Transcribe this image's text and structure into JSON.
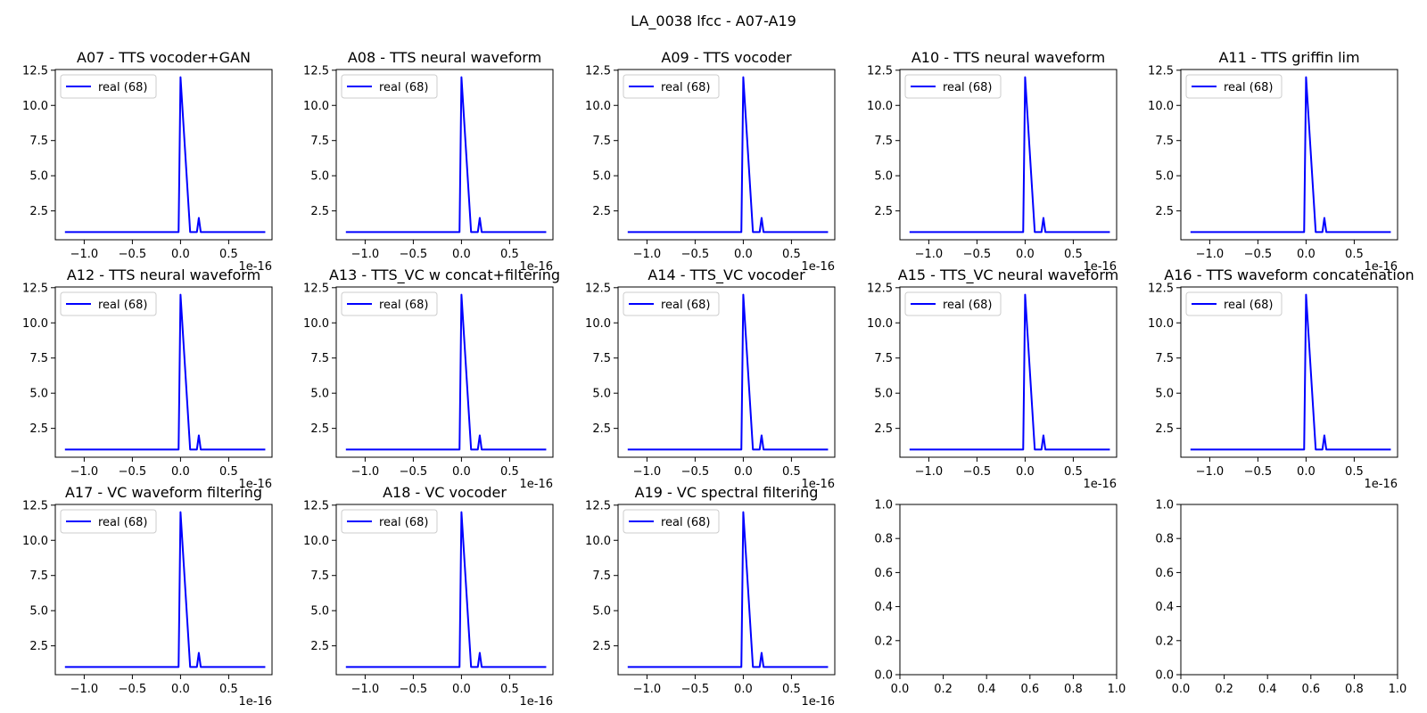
{
  "figure": {
    "title": "LA_0038 lfcc - A07-A19"
  },
  "chart_data": [
    {
      "type": "line",
      "title": "A07 - TTS vocoder+GAN",
      "x": [
        -1.2,
        -0.1,
        0.0,
        0.1,
        0.2,
        0.9
      ],
      "xlim": [
        -1.3,
        0.95
      ],
      "ylim": [
        0.45,
        12.55
      ],
      "x_offset_label": "1e-16",
      "x_ticks": [
        -1.0,
        -0.5,
        0.0,
        0.5
      ],
      "x_tick_labels": [
        "−1.0",
        "−0.5",
        "0.0",
        "0.5"
      ],
      "y_ticks": [
        2.5,
        5.0,
        7.5,
        10.0,
        12.5
      ],
      "y_tick_labels": [
        "2.5",
        "5.0",
        "7.5",
        "10.0",
        "12.5"
      ],
      "series": [
        {
          "name": "real (68)",
          "color": "#0000ff",
          "points": [
            [
              -1.2,
              1
            ],
            [
              -0.02,
              1
            ],
            [
              0,
              12
            ],
            [
              0.1,
              1
            ],
            [
              0.17,
              1
            ],
            [
              0.19,
              2
            ],
            [
              0.21,
              1
            ],
            [
              0.88,
              1
            ]
          ]
        }
      ],
      "legend": "upper-left"
    },
    {
      "type": "line",
      "title": "A08 - TTS neural waveform",
      "xlim": [
        -1.3,
        0.95
      ],
      "ylim": [
        0.45,
        12.55
      ],
      "x_offset_label": "1e-16",
      "x_ticks": [
        -1.0,
        -0.5,
        0.0,
        0.5
      ],
      "x_tick_labels": [
        "−1.0",
        "−0.5",
        "0.0",
        "0.5"
      ],
      "y_ticks": [
        2.5,
        5.0,
        7.5,
        10.0,
        12.5
      ],
      "y_tick_labels": [
        "2.5",
        "5.0",
        "7.5",
        "10.0",
        "12.5"
      ],
      "series": [
        {
          "name": "real (68)",
          "color": "#0000ff",
          "points": [
            [
              -1.2,
              1
            ],
            [
              -0.02,
              1
            ],
            [
              0,
              12
            ],
            [
              0.1,
              1
            ],
            [
              0.17,
              1
            ],
            [
              0.19,
              2
            ],
            [
              0.21,
              1
            ],
            [
              0.88,
              1
            ]
          ]
        }
      ],
      "legend": "upper-left"
    },
    {
      "type": "line",
      "title": "A09 - TTS vocoder",
      "xlim": [
        -1.3,
        0.95
      ],
      "ylim": [
        0.45,
        12.55
      ],
      "x_offset_label": "1e-16",
      "x_ticks": [
        -1.0,
        -0.5,
        0.0,
        0.5
      ],
      "x_tick_labels": [
        "−1.0",
        "−0.5",
        "0.0",
        "0.5"
      ],
      "y_ticks": [
        2.5,
        5.0,
        7.5,
        10.0,
        12.5
      ],
      "y_tick_labels": [
        "2.5",
        "5.0",
        "7.5",
        "10.0",
        "12.5"
      ],
      "series": [
        {
          "name": "real (68)",
          "color": "#0000ff",
          "points": [
            [
              -1.2,
              1
            ],
            [
              -0.02,
              1
            ],
            [
              0,
              12
            ],
            [
              0.1,
              1
            ],
            [
              0.17,
              1
            ],
            [
              0.19,
              2
            ],
            [
              0.21,
              1
            ],
            [
              0.88,
              1
            ]
          ]
        }
      ],
      "legend": "upper-left"
    },
    {
      "type": "line",
      "title": "A10 - TTS neural waveform",
      "xlim": [
        -1.3,
        0.95
      ],
      "ylim": [
        0.45,
        12.55
      ],
      "x_offset_label": "1e-16",
      "x_ticks": [
        -1.0,
        -0.5,
        0.0,
        0.5
      ],
      "x_tick_labels": [
        "−1.0",
        "−0.5",
        "0.0",
        "0.5"
      ],
      "y_ticks": [
        2.5,
        5.0,
        7.5,
        10.0,
        12.5
      ],
      "y_tick_labels": [
        "2.5",
        "5.0",
        "7.5",
        "10.0",
        "12.5"
      ],
      "series": [
        {
          "name": "real (68)",
          "color": "#0000ff",
          "points": [
            [
              -1.2,
              1
            ],
            [
              -0.02,
              1
            ],
            [
              0,
              12
            ],
            [
              0.1,
              1
            ],
            [
              0.17,
              1
            ],
            [
              0.19,
              2
            ],
            [
              0.21,
              1
            ],
            [
              0.88,
              1
            ]
          ]
        }
      ],
      "legend": "upper-left"
    },
    {
      "type": "line",
      "title": "A11 - TTS griffin lim",
      "xlim": [
        -1.3,
        0.95
      ],
      "ylim": [
        0.45,
        12.55
      ],
      "x_offset_label": "1e-16",
      "x_ticks": [
        -1.0,
        -0.5,
        0.0,
        0.5
      ],
      "x_tick_labels": [
        "−1.0",
        "−0.5",
        "0.0",
        "0.5"
      ],
      "y_ticks": [
        2.5,
        5.0,
        7.5,
        10.0,
        12.5
      ],
      "y_tick_labels": [
        "2.5",
        "5.0",
        "7.5",
        "10.0",
        "12.5"
      ],
      "series": [
        {
          "name": "real (68)",
          "color": "#0000ff",
          "points": [
            [
              -1.2,
              1
            ],
            [
              -0.02,
              1
            ],
            [
              0,
              12
            ],
            [
              0.1,
              1
            ],
            [
              0.17,
              1
            ],
            [
              0.19,
              2
            ],
            [
              0.21,
              1
            ],
            [
              0.88,
              1
            ]
          ]
        }
      ],
      "legend": "upper-left"
    },
    {
      "type": "line",
      "title": "A12 - TTS neural waveform",
      "xlim": [
        -1.3,
        0.95
      ],
      "ylim": [
        0.45,
        12.55
      ],
      "x_offset_label": "1e-16",
      "x_ticks": [
        -1.0,
        -0.5,
        0.0,
        0.5
      ],
      "x_tick_labels": [
        "−1.0",
        "−0.5",
        "0.0",
        "0.5"
      ],
      "y_ticks": [
        2.5,
        5.0,
        7.5,
        10.0,
        12.5
      ],
      "y_tick_labels": [
        "2.5",
        "5.0",
        "7.5",
        "10.0",
        "12.5"
      ],
      "series": [
        {
          "name": "real (68)",
          "color": "#0000ff",
          "points": [
            [
              -1.2,
              1
            ],
            [
              -0.02,
              1
            ],
            [
              0,
              12
            ],
            [
              0.1,
              1
            ],
            [
              0.17,
              1
            ],
            [
              0.19,
              2
            ],
            [
              0.21,
              1
            ],
            [
              0.88,
              1
            ]
          ]
        }
      ],
      "legend": "upper-left"
    },
    {
      "type": "line",
      "title": "A13 - TTS_VC w concat+filtering",
      "xlim": [
        -1.3,
        0.95
      ],
      "ylim": [
        0.45,
        12.55
      ],
      "x_offset_label": "1e-16",
      "x_ticks": [
        -1.0,
        -0.5,
        0.0,
        0.5
      ],
      "x_tick_labels": [
        "−1.0",
        "−0.5",
        "0.0",
        "0.5"
      ],
      "y_ticks": [
        2.5,
        5.0,
        7.5,
        10.0,
        12.5
      ],
      "y_tick_labels": [
        "2.5",
        "5.0",
        "7.5",
        "10.0",
        "12.5"
      ],
      "series": [
        {
          "name": "real (68)",
          "color": "#0000ff",
          "points": [
            [
              -1.2,
              1
            ],
            [
              -0.02,
              1
            ],
            [
              0,
              12
            ],
            [
              0.1,
              1
            ],
            [
              0.17,
              1
            ],
            [
              0.19,
              2
            ],
            [
              0.21,
              1
            ],
            [
              0.88,
              1
            ]
          ]
        }
      ],
      "legend": "upper-left"
    },
    {
      "type": "line",
      "title": "A14 - TTS_VC vocoder",
      "xlim": [
        -1.3,
        0.95
      ],
      "ylim": [
        0.45,
        12.55
      ],
      "x_offset_label": "1e-16",
      "x_ticks": [
        -1.0,
        -0.5,
        0.0,
        0.5
      ],
      "x_tick_labels": [
        "−1.0",
        "−0.5",
        "0.0",
        "0.5"
      ],
      "y_ticks": [
        2.5,
        5.0,
        7.5,
        10.0,
        12.5
      ],
      "y_tick_labels": [
        "2.5",
        "5.0",
        "7.5",
        "10.0",
        "12.5"
      ],
      "series": [
        {
          "name": "real (68)",
          "color": "#0000ff",
          "points": [
            [
              -1.2,
              1
            ],
            [
              -0.02,
              1
            ],
            [
              0,
              12
            ],
            [
              0.1,
              1
            ],
            [
              0.17,
              1
            ],
            [
              0.19,
              2
            ],
            [
              0.21,
              1
            ],
            [
              0.88,
              1
            ]
          ]
        }
      ],
      "legend": "upper-left"
    },
    {
      "type": "line",
      "title": "A15 - TTS_VC neural waveform",
      "xlim": [
        -1.3,
        0.95
      ],
      "ylim": [
        0.45,
        12.55
      ],
      "x_offset_label": "1e-16",
      "x_ticks": [
        -1.0,
        -0.5,
        0.0,
        0.5
      ],
      "x_tick_labels": [
        "−1.0",
        "−0.5",
        "0.0",
        "0.5"
      ],
      "y_ticks": [
        2.5,
        5.0,
        7.5,
        10.0,
        12.5
      ],
      "y_tick_labels": [
        "2.5",
        "5.0",
        "7.5",
        "10.0",
        "12.5"
      ],
      "series": [
        {
          "name": "real (68)",
          "color": "#0000ff",
          "points": [
            [
              -1.2,
              1
            ],
            [
              -0.02,
              1
            ],
            [
              0,
              12
            ],
            [
              0.1,
              1
            ],
            [
              0.17,
              1
            ],
            [
              0.19,
              2
            ],
            [
              0.21,
              1
            ],
            [
              0.88,
              1
            ]
          ]
        }
      ],
      "legend": "upper-left"
    },
    {
      "type": "line",
      "title": "A16 - TTS waveform concatenation",
      "xlim": [
        -1.3,
        0.95
      ],
      "ylim": [
        0.45,
        12.55
      ],
      "x_offset_label": "1e-16",
      "x_ticks": [
        -1.0,
        -0.5,
        0.0,
        0.5
      ],
      "x_tick_labels": [
        "−1.0",
        "−0.5",
        "0.0",
        "0.5"
      ],
      "y_ticks": [
        2.5,
        5.0,
        7.5,
        10.0,
        12.5
      ],
      "y_tick_labels": [
        "2.5",
        "5.0",
        "7.5",
        "10.0",
        "12.5"
      ],
      "series": [
        {
          "name": "real (68)",
          "color": "#0000ff",
          "points": [
            [
              -1.2,
              1
            ],
            [
              -0.02,
              1
            ],
            [
              0,
              12
            ],
            [
              0.1,
              1
            ],
            [
              0.17,
              1
            ],
            [
              0.19,
              2
            ],
            [
              0.21,
              1
            ],
            [
              0.88,
              1
            ]
          ]
        }
      ],
      "legend": "upper-left"
    },
    {
      "type": "line",
      "title": "A17 - VC waveform filtering",
      "xlim": [
        -1.3,
        0.95
      ],
      "ylim": [
        0.45,
        12.55
      ],
      "x_offset_label": "1e-16",
      "x_ticks": [
        -1.0,
        -0.5,
        0.0,
        0.5
      ],
      "x_tick_labels": [
        "−1.0",
        "−0.5",
        "0.0",
        "0.5"
      ],
      "y_ticks": [
        2.5,
        5.0,
        7.5,
        10.0,
        12.5
      ],
      "y_tick_labels": [
        "2.5",
        "5.0",
        "7.5",
        "10.0",
        "12.5"
      ],
      "series": [
        {
          "name": "real (68)",
          "color": "#0000ff",
          "points": [
            [
              -1.2,
              1
            ],
            [
              -0.02,
              1
            ],
            [
              0,
              12
            ],
            [
              0.1,
              1
            ],
            [
              0.17,
              1
            ],
            [
              0.19,
              2
            ],
            [
              0.21,
              1
            ],
            [
              0.88,
              1
            ]
          ]
        }
      ],
      "legend": "upper-left"
    },
    {
      "type": "line",
      "title": "A18 - VC vocoder",
      "xlim": [
        -1.3,
        0.95
      ],
      "ylim": [
        0.45,
        12.55
      ],
      "x_offset_label": "1e-16",
      "x_ticks": [
        -1.0,
        -0.5,
        0.0,
        0.5
      ],
      "x_tick_labels": [
        "−1.0",
        "−0.5",
        "0.0",
        "0.5"
      ],
      "y_ticks": [
        2.5,
        5.0,
        7.5,
        10.0,
        12.5
      ],
      "y_tick_labels": [
        "2.5",
        "5.0",
        "7.5",
        "10.0",
        "12.5"
      ],
      "series": [
        {
          "name": "real (68)",
          "color": "#0000ff",
          "points": [
            [
              -1.2,
              1
            ],
            [
              -0.02,
              1
            ],
            [
              0,
              12
            ],
            [
              0.1,
              1
            ],
            [
              0.17,
              1
            ],
            [
              0.19,
              2
            ],
            [
              0.21,
              1
            ],
            [
              0.88,
              1
            ]
          ]
        }
      ],
      "legend": "upper-left"
    },
    {
      "type": "line",
      "title": "A19 - VC spectral filtering",
      "xlim": [
        -1.3,
        0.95
      ],
      "ylim": [
        0.45,
        12.55
      ],
      "x_offset_label": "1e-16",
      "x_ticks": [
        -1.0,
        -0.5,
        0.0,
        0.5
      ],
      "x_tick_labels": [
        "−1.0",
        "−0.5",
        "0.0",
        "0.5"
      ],
      "y_ticks": [
        2.5,
        5.0,
        7.5,
        10.0,
        12.5
      ],
      "y_tick_labels": [
        "2.5",
        "5.0",
        "7.5",
        "10.0",
        "12.5"
      ],
      "series": [
        {
          "name": "real (68)",
          "color": "#0000ff",
          "points": [
            [
              -1.2,
              1
            ],
            [
              -0.02,
              1
            ],
            [
              0,
              12
            ],
            [
              0.1,
              1
            ],
            [
              0.17,
              1
            ],
            [
              0.19,
              2
            ],
            [
              0.21,
              1
            ],
            [
              0.88,
              1
            ]
          ]
        }
      ],
      "legend": "upper-left"
    },
    {
      "type": "line",
      "title": "",
      "empty": true,
      "xlim": [
        0,
        1
      ],
      "ylim": [
        0,
        1
      ],
      "x_ticks": [
        0.0,
        0.2,
        0.4,
        0.6,
        0.8,
        1.0
      ],
      "x_tick_labels": [
        "0.0",
        "0.2",
        "0.4",
        "0.6",
        "0.8",
        "1.0"
      ],
      "y_ticks": [
        0.0,
        0.2,
        0.4,
        0.6,
        0.8,
        1.0
      ],
      "y_tick_labels": [
        "0.0",
        "0.2",
        "0.4",
        "0.6",
        "0.8",
        "1.0"
      ],
      "series": []
    },
    {
      "type": "line",
      "title": "",
      "empty": true,
      "xlim": [
        0,
        1
      ],
      "ylim": [
        0,
        1
      ],
      "x_ticks": [
        0.0,
        0.2,
        0.4,
        0.6,
        0.8,
        1.0
      ],
      "x_tick_labels": [
        "0.0",
        "0.2",
        "0.4",
        "0.6",
        "0.8",
        "1.0"
      ],
      "y_ticks": [
        0.0,
        0.2,
        0.4,
        0.6,
        0.8,
        1.0
      ],
      "y_tick_labels": [
        "0.0",
        "0.2",
        "0.4",
        "0.6",
        "0.8",
        "1.0"
      ],
      "series": []
    }
  ]
}
